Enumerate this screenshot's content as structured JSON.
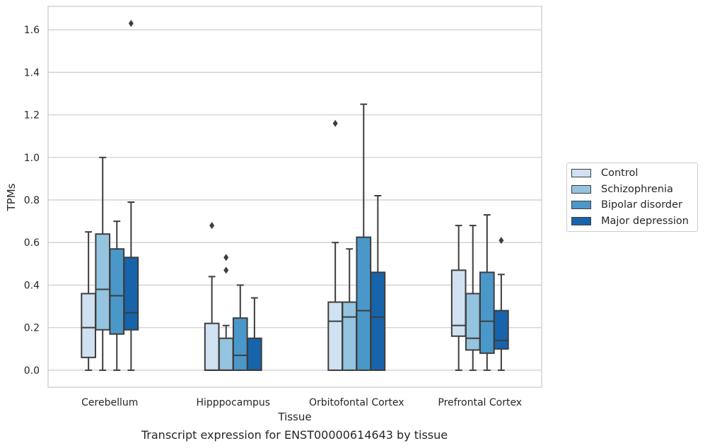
{
  "chart_data": {
    "type": "box",
    "xlabel": "Tissue",
    "ylabel": "TPMs",
    "caption": "Transcript expression for ENST00000614643 by tissue",
    "categories": [
      "Cerebellum",
      "Hipppocampus",
      "Orbitofontal Cortex",
      "Prefrontal Cortex"
    ],
    "ylim": [
      -0.08,
      1.71
    ],
    "yticks": [
      "0.0",
      "0.2",
      "0.4",
      "0.6",
      "0.8",
      "1.0",
      "1.2",
      "1.4",
      "1.6"
    ],
    "grid": "horizontal",
    "legend_position": "right",
    "series": [
      {
        "name": "Control",
        "color": "#d0e1f2",
        "boxes": [
          {
            "whislo": 0.0,
            "q1": 0.06,
            "med": 0.2,
            "q3": 0.36,
            "whishi": 0.65,
            "fliers": []
          },
          {
            "whislo": 0.0,
            "q1": 0.0,
            "med": 0.0,
            "q3": 0.22,
            "whishi": 0.44,
            "fliers": [
              0.68
            ]
          },
          {
            "whislo": 0.0,
            "q1": 0.0,
            "med": 0.23,
            "q3": 0.32,
            "whishi": 0.6,
            "fliers": [
              1.16
            ]
          },
          {
            "whislo": 0.0,
            "q1": 0.16,
            "med": 0.21,
            "q3": 0.47,
            "whishi": 0.68,
            "fliers": []
          }
        ]
      },
      {
        "name": "Schizophrenia",
        "color": "#94c4df",
        "boxes": [
          {
            "whislo": 0.0,
            "q1": 0.19,
            "med": 0.38,
            "q3": 0.64,
            "whishi": 1.0,
            "fliers": []
          },
          {
            "whislo": 0.0,
            "q1": 0.0,
            "med": 0.0,
            "q3": 0.15,
            "whishi": 0.21,
            "fliers": [
              0.47,
              0.53
            ]
          },
          {
            "whislo": 0.0,
            "q1": 0.0,
            "med": 0.25,
            "q3": 0.32,
            "whishi": 0.57,
            "fliers": []
          },
          {
            "whislo": 0.0,
            "q1": 0.095,
            "med": 0.15,
            "q3": 0.36,
            "whishi": 0.68,
            "fliers": []
          }
        ]
      },
      {
        "name": "Bipolar disorder",
        "color": "#4a98c9",
        "boxes": [
          {
            "whislo": 0.0,
            "q1": 0.17,
            "med": 0.35,
            "q3": 0.57,
            "whishi": 0.7,
            "fliers": []
          },
          {
            "whislo": 0.0,
            "q1": 0.0,
            "med": 0.07,
            "q3": 0.245,
            "whishi": 0.4,
            "fliers": []
          },
          {
            "whislo": 0.0,
            "q1": 0.0,
            "med": 0.28,
            "q3": 0.625,
            "whishi": 1.25,
            "fliers": []
          },
          {
            "whislo": 0.0,
            "q1": 0.08,
            "med": 0.23,
            "q3": 0.46,
            "whishi": 0.73,
            "fliers": []
          }
        ]
      },
      {
        "name": "Major depression",
        "color": "#1764ab",
        "boxes": [
          {
            "whislo": 0.0,
            "q1": 0.19,
            "med": 0.27,
            "q3": 0.53,
            "whishi": 0.79,
            "fliers": [
              1.63
            ]
          },
          {
            "whislo": 0.0,
            "q1": 0.0,
            "med": 0.0,
            "q3": 0.15,
            "whishi": 0.34,
            "fliers": []
          },
          {
            "whislo": 0.0,
            "q1": 0.0,
            "med": 0.25,
            "q3": 0.46,
            "whishi": 0.82,
            "fliers": []
          },
          {
            "whislo": 0.0,
            "q1": 0.1,
            "med": 0.14,
            "q3": 0.28,
            "whishi": 0.45,
            "fliers": [
              0.61
            ]
          }
        ]
      }
    ]
  }
}
